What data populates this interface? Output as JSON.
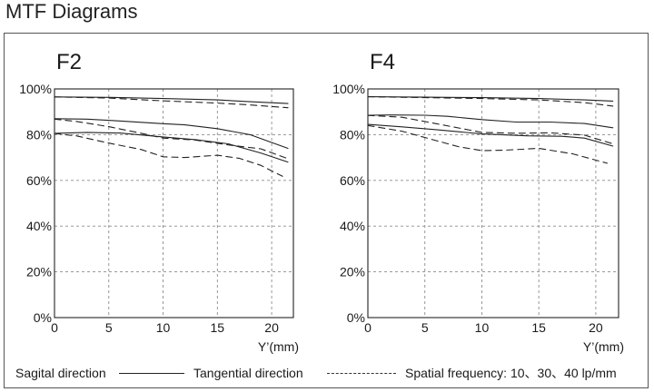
{
  "page": {
    "title": "MTF Diagrams"
  },
  "legend": {
    "sagital": "Sagital direction",
    "tangential": "Tangential direction",
    "frequency": "Spatial frequency: 10、30、40 lp/mm"
  },
  "colors": {
    "line": "#222222",
    "grid": "#8c8c8c",
    "axis": "#222222"
  },
  "chart_data": [
    {
      "type": "line",
      "title": "F2",
      "xlabel": "Y’(mm)",
      "ylabel": "",
      "xlim": [
        0,
        22
      ],
      "ylim": [
        0,
        100
      ],
      "x_ticks": [
        0,
        5,
        10,
        15,
        20
      ],
      "x_tick_labels": [
        "0",
        "5",
        "10",
        "15",
        "20"
      ],
      "y_ticks": [
        0,
        20,
        40,
        60,
        80,
        100
      ],
      "y_tick_labels": [
        "0%",
        "20%",
        "40%",
        "60%",
        "80%",
        "100%"
      ],
      "grid": true,
      "series": [
        {
          "style": "solid",
          "x": [
            0,
            5,
            10,
            15,
            18,
            21.5
          ],
          "y": [
            96.5,
            96.3,
            95.8,
            95.2,
            94.4,
            93.6
          ]
        },
        {
          "style": "dashed",
          "x": [
            0,
            5,
            10,
            15,
            18,
            21.5
          ],
          "y": [
            96.5,
            96.0,
            94.8,
            93.8,
            93.0,
            91.8
          ]
        },
        {
          "style": "solid",
          "x": [
            0,
            3,
            6,
            10,
            12,
            15,
            18,
            21.5
          ],
          "y": [
            87.0,
            86.8,
            86.0,
            84.8,
            84.3,
            82.6,
            80.0,
            74.0
          ]
        },
        {
          "style": "dashed",
          "x": [
            0,
            2,
            5,
            8,
            10,
            13,
            16,
            19,
            21.5
          ],
          "y": [
            86.8,
            85.8,
            83.5,
            80.6,
            78.5,
            77.6,
            75.5,
            73.8,
            69.5
          ]
        },
        {
          "style": "solid",
          "x": [
            0,
            3,
            6,
            10,
            13,
            16,
            19,
            21.5
          ],
          "y": [
            80.6,
            81.0,
            80.7,
            79.0,
            77.8,
            76.0,
            72.0,
            68.0
          ]
        },
        {
          "style": "dashed",
          "x": [
            0,
            2,
            5,
            8,
            10,
            12,
            15,
            17,
            19,
            21
          ],
          "y": [
            80.5,
            79.5,
            76.3,
            73.5,
            70.3,
            70.0,
            71.0,
            69.7,
            66.6,
            61.8
          ]
        }
      ]
    },
    {
      "type": "line",
      "title": "F4",
      "xlabel": "Y’(mm)",
      "ylabel": "",
      "xlim": [
        0,
        22
      ],
      "ylim": [
        0,
        100
      ],
      "x_ticks": [
        0,
        5,
        10,
        15,
        20
      ],
      "x_tick_labels": [
        "0",
        "5",
        "10",
        "15",
        "20"
      ],
      "y_ticks": [
        0,
        20,
        40,
        60,
        80,
        100
      ],
      "y_tick_labels": [
        "0%",
        "20%",
        "40%",
        "60%",
        "80%",
        "100%"
      ],
      "grid": true,
      "series": [
        {
          "style": "solid",
          "x": [
            0,
            5,
            10,
            15,
            19,
            21.5
          ],
          "y": [
            96.6,
            96.4,
            96.2,
            95.8,
            95.2,
            94.7
          ]
        },
        {
          "style": "dashed",
          "x": [
            0,
            5,
            10,
            15,
            19,
            21.5
          ],
          "y": [
            96.6,
            96.2,
            95.8,
            95.2,
            94.0,
            92.5
          ]
        },
        {
          "style": "solid",
          "x": [
            0,
            2,
            5,
            7,
            10,
            13,
            16,
            19,
            21.5
          ],
          "y": [
            88.5,
            88.6,
            88.5,
            88.0,
            86.6,
            85.5,
            85.5,
            84.9,
            83.0
          ]
        },
        {
          "style": "dashed",
          "x": [
            0,
            3,
            6,
            10,
            13,
            16,
            19,
            21.5
          ],
          "y": [
            88.4,
            87.6,
            84.8,
            81.0,
            80.6,
            80.8,
            79.8,
            76.0
          ]
        },
        {
          "style": "solid",
          "x": [
            0,
            3,
            6,
            10,
            14,
            17,
            19,
            21.5
          ],
          "y": [
            84.5,
            83.4,
            82.2,
            80.3,
            79.5,
            79.3,
            78.5,
            75.0
          ]
        },
        {
          "style": "dashed",
          "x": [
            0,
            3,
            6,
            8,
            10,
            12,
            15,
            18,
            21
          ],
          "y": [
            84.0,
            81.5,
            77.4,
            74.7,
            73.0,
            73.2,
            74.0,
            71.6,
            67.5
          ]
        }
      ]
    }
  ]
}
